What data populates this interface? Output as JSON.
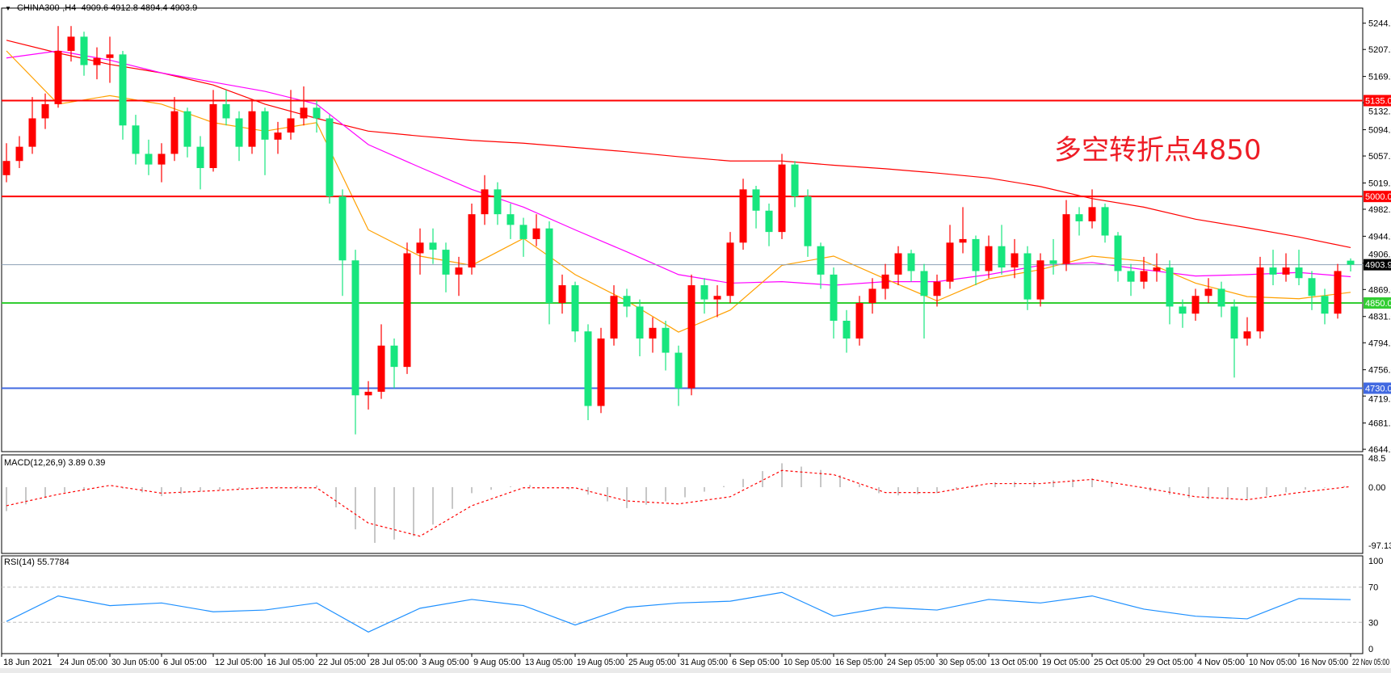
{
  "header": {
    "symbol": "CHINA300-,H4",
    "ohlc": "4909.6 4912.8 4894.4 4903.9",
    "dropdown_icon": "triangle-down-icon"
  },
  "annotation": "多空转折点4850",
  "colors": {
    "bull": "#ff0000",
    "bear": "#17e67e",
    "ma_long": "#ff0000",
    "ma_mid": "#ff00ff",
    "ma_short": "#ffa000",
    "macd_hist": "#b4b4b4",
    "macd_signal": "#ff0000",
    "rsi": "#1e90ff"
  },
  "price_axis": [
    "5244.0",
    "5207.0",
    "5169.0",
    "5132.0",
    "5094.0",
    "5057.0",
    "5019.0",
    "4982.0",
    "4944.0",
    "4906.0",
    "4869.0",
    "4831.0",
    "4794.0",
    "4756.0",
    "4719.0",
    "4681.0",
    "4644.0"
  ],
  "levels": [
    {
      "value": 5135.0,
      "label": "5135.0",
      "color": "#ff0000"
    },
    {
      "value": 5000.0,
      "label": "5000.0",
      "color": "#ff0000"
    },
    {
      "value": 4903.9,
      "label": "4903.9",
      "color": "#8ca0b4",
      "label_bg": "#000000"
    },
    {
      "value": 4850.0,
      "label": "4850.0",
      "color": "#32cd32"
    },
    {
      "value": 4730.0,
      "label": "4730.0",
      "color": "#4169e1"
    }
  ],
  "dates": [
    "18 Jun 2021",
    "24 Jun 05:00",
    "30 Jun 05:00",
    "6 Jul 05:00",
    "12 Jul 05:00",
    "16 Jul 05:00",
    "22 Jul 05:00",
    "28 Jul 05:00",
    "3 Aug 05:00",
    "9 Aug 05:00",
    "13 Aug 05:00",
    "19 Aug 05:00",
    "25 Aug 05:00",
    "31 Aug 05:00",
    "6 Sep 05:00",
    "10 Sep 05:00",
    "16 Sep 05:00",
    "24 Sep 05:00",
    "30 Sep 05:00",
    "13 Oct 05:00",
    "19 Oct 05:00",
    "25 Oct 05:00",
    "29 Oct 05:00",
    "4 Nov 05:00",
    "10 Nov 05:00",
    "16 Nov 05:00",
    "22 Nov 05:00"
  ],
  "macd": {
    "label": "MACD(12,26,9) 3.89 0.39",
    "axis": [
      "48.5",
      "0.00",
      "-97.13"
    ],
    "hist": [
      -40,
      -10,
      2,
      -15,
      -5,
      0,
      3,
      -95,
      -80,
      -10,
      5,
      -5,
      -35,
      -20,
      5,
      40,
      25,
      -15,
      -10,
      8,
      10,
      15,
      -5,
      -20,
      -20,
      -5,
      3
    ],
    "signal": [
      -31,
      -12,
      3,
      -10,
      -6,
      -1,
      -1,
      -60,
      -82,
      -31,
      -1,
      -1,
      -23,
      -28,
      -16,
      28,
      21,
      -9,
      -9,
      6,
      6,
      13,
      -1,
      -16,
      -21,
      -9,
      1
    ]
  },
  "rsi": {
    "label": "RSI(14) 55.7784",
    "axis": [
      "100",
      "70",
      "30",
      "0"
    ],
    "levels": [
      70,
      30
    ],
    "values": [
      31,
      60,
      49,
      52,
      42,
      44,
      52,
      19,
      46,
      56,
      49,
      27,
      47,
      52,
      54,
      64,
      37,
      47,
      44,
      56,
      52,
      60,
      45,
      37,
      34,
      57,
      55.8
    ]
  },
  "chart_data": {
    "type": "candlestick",
    "ylim": [
      4644,
      5244
    ],
    "candles": [
      [
        5030,
        5075,
        5020,
        5050
      ],
      [
        5050,
        5085,
        5040,
        5070
      ],
      [
        5070,
        5140,
        5060,
        5110
      ],
      [
        5110,
        5145,
        5095,
        5130
      ],
      [
        5130,
        5240,
        5125,
        5205
      ],
      [
        5205,
        5240,
        5190,
        5225
      ],
      [
        5225,
        5232,
        5170,
        5185
      ],
      [
        5185,
        5210,
        5165,
        5195
      ],
      [
        5195,
        5225,
        5160,
        5200
      ],
      [
        5200,
        5205,
        5080,
        5100
      ],
      [
        5100,
        5115,
        5045,
        5060
      ],
      [
        5060,
        5080,
        5030,
        5045
      ],
      [
        5045,
        5075,
        5020,
        5060
      ],
      [
        5060,
        5140,
        5050,
        5120
      ],
      [
        5120,
        5125,
        5055,
        5070
      ],
      [
        5070,
        5085,
        5010,
        5040
      ],
      [
        5040,
        5150,
        5035,
        5130
      ],
      [
        5130,
        5150,
        5100,
        5110
      ],
      [
        5110,
        5120,
        5050,
        5070
      ],
      [
        5070,
        5135,
        5060,
        5120
      ],
      [
        5120,
        5125,
        5030,
        5080
      ],
      [
        5080,
        5105,
        5060,
        5090
      ],
      [
        5090,
        5150,
        5080,
        5110
      ],
      [
        5110,
        5155,
        5100,
        5125
      ],
      [
        5125,
        5135,
        5090,
        5110
      ],
      [
        5110,
        5115,
        4990,
        5000
      ],
      [
        5000,
        5010,
        4860,
        4910
      ],
      [
        4910,
        4925,
        4665,
        4720
      ],
      [
        4720,
        4740,
        4700,
        4725
      ],
      [
        4725,
        4820,
        4715,
        4790
      ],
      [
        4790,
        4800,
        4730,
        4760
      ],
      [
        4760,
        4935,
        4750,
        4920
      ],
      [
        4920,
        4955,
        4890,
        4935
      ],
      [
        4935,
        4955,
        4905,
        4925
      ],
      [
        4925,
        4935,
        4865,
        4890
      ],
      [
        4890,
        4915,
        4860,
        4900
      ],
      [
        4900,
        4990,
        4890,
        4975
      ],
      [
        4975,
        5030,
        4960,
        5010
      ],
      [
        5010,
        5020,
        4960,
        4975
      ],
      [
        4975,
        4990,
        4940,
        4960
      ],
      [
        4960,
        4970,
        4915,
        4940
      ],
      [
        4940,
        4975,
        4930,
        4955
      ],
      [
        4955,
        4965,
        4820,
        4850
      ],
      [
        4850,
        4890,
        4835,
        4875
      ],
      [
        4875,
        4880,
        4795,
        4810
      ],
      [
        4810,
        4820,
        4685,
        4705
      ],
      [
        4705,
        4815,
        4695,
        4800
      ],
      [
        4800,
        4875,
        4790,
        4860
      ],
      [
        4860,
        4870,
        4830,
        4845
      ],
      [
        4845,
        4855,
        4775,
        4800
      ],
      [
        4800,
        4830,
        4780,
        4815
      ],
      [
        4815,
        4825,
        4755,
        4780
      ],
      [
        4780,
        4790,
        4705,
        4730
      ],
      [
        4730,
        4890,
        4720,
        4875
      ],
      [
        4875,
        4885,
        4835,
        4855
      ],
      [
        4855,
        4875,
        4830,
        4860
      ],
      [
        4860,
        4950,
        4850,
        4935
      ],
      [
        4935,
        5025,
        4925,
        5010
      ],
      [
        5010,
        5015,
        4955,
        4980
      ],
      [
        4980,
        4990,
        4930,
        4950
      ],
      [
        4950,
        5060,
        4940,
        5045
      ],
      [
        5045,
        5050,
        4985,
        5000
      ],
      [
        5000,
        5010,
        4915,
        4930
      ],
      [
        4930,
        4935,
        4870,
        4890
      ],
      [
        4890,
        4900,
        4800,
        4825
      ],
      [
        4825,
        4840,
        4780,
        4800
      ],
      [
        4800,
        4860,
        4790,
        4850
      ],
      [
        4850,
        4885,
        4835,
        4870
      ],
      [
        4870,
        4905,
        4855,
        4890
      ],
      [
        4890,
        4930,
        4875,
        4920
      ],
      [
        4920,
        4925,
        4880,
        4895
      ],
      [
        4895,
        4905,
        4800,
        4860
      ],
      [
        4860,
        4890,
        4845,
        4880
      ],
      [
        4880,
        4960,
        4870,
        4935
      ],
      [
        4935,
        4985,
        4920,
        4940
      ],
      [
        4940,
        4945,
        4875,
        4895
      ],
      [
        4895,
        4945,
        4885,
        4930
      ],
      [
        4930,
        4960,
        4890,
        4900
      ],
      [
        4900,
        4940,
        4885,
        4920
      ],
      [
        4920,
        4930,
        4840,
        4855
      ],
      [
        4855,
        4920,
        4845,
        4910
      ],
      [
        4910,
        4940,
        4890,
        4905
      ],
      [
        4905,
        4995,
        4895,
        4975
      ],
      [
        4975,
        4985,
        4945,
        4965
      ],
      [
        4965,
        5010,
        4955,
        4985
      ],
      [
        4985,
        4990,
        4935,
        4945
      ],
      [
        4945,
        4950,
        4880,
        4895
      ],
      [
        4895,
        4905,
        4860,
        4880
      ],
      [
        4880,
        4915,
        4870,
        4895
      ],
      [
        4895,
        4920,
        4880,
        4900
      ],
      [
        4900,
        4910,
        4820,
        4845
      ],
      [
        4845,
        4855,
        4815,
        4835
      ],
      [
        4835,
        4870,
        4825,
        4860
      ],
      [
        4860,
        4885,
        4850,
        4870
      ],
      [
        4870,
        4880,
        4830,
        4845
      ],
      [
        4845,
        4855,
        4745,
        4800
      ],
      [
        4800,
        4830,
        4790,
        4810
      ],
      [
        4810,
        4915,
        4800,
        4900
      ],
      [
        4900,
        4925,
        4875,
        4890
      ],
      [
        4890,
        4920,
        4880,
        4900
      ],
      [
        4900,
        4925,
        4875,
        4885
      ],
      [
        4885,
        4895,
        4840,
        4860
      ],
      [
        4860,
        4870,
        4820,
        4835
      ],
      [
        4835,
        4905,
        4828,
        4895
      ],
      [
        4909.6,
        4912.8,
        4894.4,
        4903.9
      ]
    ],
    "moving_averages": {
      "long": [
        5220,
        5202,
        5186,
        5174,
        5157,
        5130,
        5110,
        5092,
        5085,
        5079,
        5075,
        5069,
        5063,
        5056,
        5050,
        5050,
        5044,
        5039,
        5033,
        5026,
        5014,
        4997,
        4985,
        4968,
        4956,
        4943,
        4928
      ],
      "mid": [
        5195,
        5205,
        5192,
        5174,
        5161,
        5148,
        5130,
        5073,
        5041,
        5010,
        4985,
        4953,
        4922,
        4890,
        4878,
        4880,
        4875,
        4880,
        4880,
        4890,
        4903,
        4907,
        4897,
        4888,
        4890,
        4893,
        4887
      ],
      "short": [
        5205,
        5130,
        5142,
        5130,
        5104,
        5092,
        5104,
        4953,
        4916,
        4903,
        4941,
        4890,
        4853,
        4809,
        4840,
        4903,
        4916,
        4884,
        4853,
        4884,
        4897,
        4916,
        4909,
        4878,
        4859,
        4856,
        4865
      ]
    }
  }
}
